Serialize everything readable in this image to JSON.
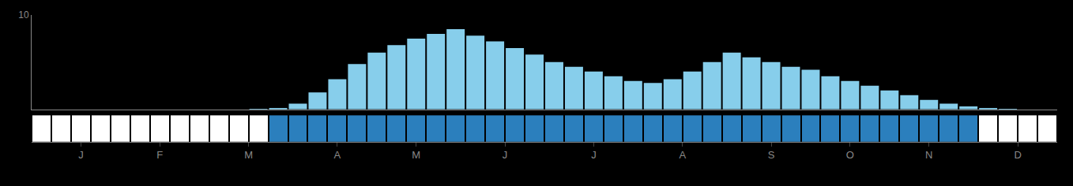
{
  "chart_data": [
    {
      "type": "bar",
      "x": [
        0,
        1,
        2,
        3,
        4,
        5,
        6,
        7,
        8,
        9,
        10,
        11,
        12,
        13,
        14,
        15,
        16,
        17,
        18,
        19,
        20,
        21,
        22,
        23,
        24,
        25,
        26,
        27,
        28,
        29,
        30,
        31,
        32,
        33,
        34,
        35,
        36,
        37,
        38,
        39,
        40,
        41,
        42,
        43,
        44,
        45,
        46,
        47,
        48,
        49,
        50,
        51
      ],
      "values": [
        0.0,
        0.0,
        0.0,
        0.0,
        0.0,
        0.0,
        0.0,
        0.0,
        0.0,
        0.0,
        0.0,
        0.05,
        0.15,
        0.6,
        1.8,
        3.2,
        4.8,
        6.0,
        6.8,
        7.5,
        8.0,
        8.5,
        7.8,
        7.2,
        6.5,
        5.8,
        5.0,
        4.5,
        4.0,
        3.5,
        3.0,
        2.8,
        3.2,
        4.0,
        5.0,
        6.0,
        5.5,
        5.0,
        4.5,
        4.2,
        3.5,
        3.0,
        2.5,
        2.0,
        1.5,
        1.0,
        0.6,
        0.3,
        0.15,
        0.05,
        0.0,
        0.0
      ],
      "color": "#87CEEB",
      "xlim": [
        -0.5,
        51.5
      ],
      "ylim": [
        0,
        10
      ],
      "yticks": [
        10
      ],
      "grid": false,
      "tick_labels": "y"
    },
    {
      "type": "heatmap",
      "x": [
        0,
        1,
        2,
        3,
        4,
        5,
        6,
        7,
        8,
        9,
        10,
        11,
        12,
        13,
        14,
        15,
        16,
        17,
        18,
        19,
        20,
        21,
        22,
        23,
        24,
        25,
        26,
        27,
        28,
        29,
        30,
        31,
        32,
        33,
        34,
        35,
        36,
        37,
        38,
        39,
        40,
        41,
        42,
        43,
        44,
        45,
        46,
        47,
        48,
        49,
        50,
        51
      ],
      "cells": [
        [
          false,
          false,
          false,
          false,
          false,
          false,
          false,
          false,
          false,
          false,
          false,
          false,
          true,
          true,
          true,
          true,
          true,
          true,
          true,
          true,
          true,
          true,
          true,
          true,
          true,
          true,
          true,
          true,
          true,
          true,
          true,
          true,
          true,
          true,
          true,
          true,
          true,
          true,
          true,
          true,
          true,
          true,
          true,
          true,
          true,
          true,
          true,
          true,
          false,
          false,
          false,
          false
        ]
      ],
      "colors": [
        "#ffffff",
        "#2b7fbd"
      ],
      "xlim": [
        -0.5,
        51.5
      ],
      "xticks": [
        {
          "value": 2.0,
          "label": "J"
        },
        {
          "value": 6.0,
          "label": "F"
        },
        {
          "value": 10.5,
          "label": "M"
        },
        {
          "value": 15.0,
          "label": "A"
        },
        {
          "value": 19.0,
          "label": "M"
        },
        {
          "value": 23.5,
          "label": "J"
        },
        {
          "value": 28.0,
          "label": "J"
        },
        {
          "value": 32.5,
          "label": "A"
        },
        {
          "value": 37.0,
          "label": "S"
        },
        {
          "value": 41.0,
          "label": "O"
        },
        {
          "value": 45.0,
          "label": "N"
        },
        {
          "value": 49.5,
          "label": "D"
        }
      ],
      "grid": false,
      "tick_labels": "x"
    }
  ]
}
